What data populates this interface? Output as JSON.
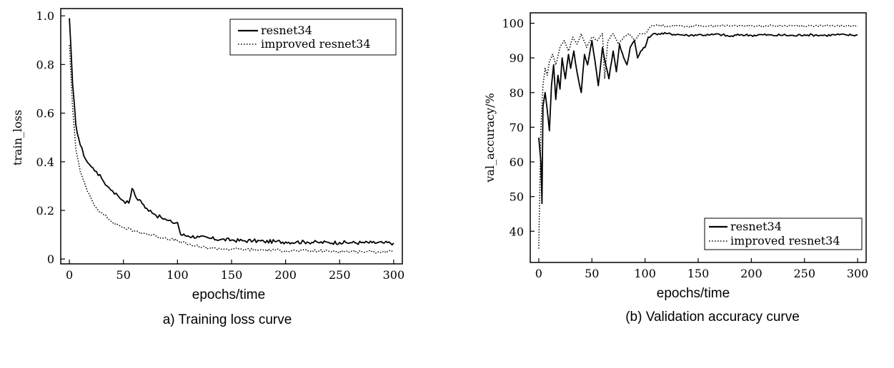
{
  "chart_data": [
    {
      "type": "line",
      "caption": "a) Training loss curve",
      "xlabel": "epochs/time",
      "ylabel": "train_loss",
      "xlim": [
        -8,
        308
      ],
      "ylim": [
        -0.02,
        1.03
      ],
      "xticks": [
        0,
        50,
        100,
        150,
        200,
        250,
        300
      ],
      "yticks": [
        0,
        0.2,
        0.4,
        0.6,
        0.8,
        1.0
      ],
      "ytick_labels": [
        "0",
        "0.2",
        "0.4",
        "0.6",
        "0.8",
        "1.0"
      ],
      "legend_position": "top-right",
      "series": [
        {
          "name": "resnet34",
          "style": "solid",
          "x": [
            0,
            3,
            6,
            10,
            15,
            20,
            25,
            30,
            35,
            40,
            45,
            50,
            55,
            58,
            62,
            66,
            70,
            75,
            80,
            85,
            90,
            95,
            100,
            103,
            110,
            120,
            130,
            140,
            150,
            160,
            170,
            180,
            190,
            200,
            210,
            220,
            230,
            240,
            250,
            260,
            270,
            280,
            290,
            300
          ],
          "y": [
            0.99,
            0.72,
            0.55,
            0.47,
            0.41,
            0.38,
            0.36,
            0.33,
            0.3,
            0.28,
            0.26,
            0.24,
            0.23,
            0.29,
            0.25,
            0.24,
            0.21,
            0.2,
            0.18,
            0.17,
            0.16,
            0.15,
            0.15,
            0.1,
            0.095,
            0.09,
            0.085,
            0.08,
            0.078,
            0.075,
            0.075,
            0.072,
            0.072,
            0.07,
            0.07,
            0.07,
            0.068,
            0.068,
            0.068,
            0.067,
            0.067,
            0.067,
            0.066,
            0.066
          ]
        },
        {
          "name": "improved resnet34",
          "style": "dotted",
          "x": [
            0,
            3,
            6,
            10,
            15,
            20,
            25,
            30,
            35,
            40,
            45,
            50,
            60,
            70,
            80,
            90,
            100,
            110,
            120,
            130,
            140,
            150,
            160,
            170,
            180,
            190,
            200,
            210,
            220,
            230,
            240,
            250,
            260,
            270,
            280,
            290,
            300
          ],
          "y": [
            0.88,
            0.62,
            0.45,
            0.36,
            0.3,
            0.25,
            0.21,
            0.19,
            0.17,
            0.15,
            0.14,
            0.13,
            0.115,
            0.105,
            0.095,
            0.085,
            0.075,
            0.06,
            0.05,
            0.045,
            0.042,
            0.04,
            0.04,
            0.038,
            0.037,
            0.036,
            0.035,
            0.034,
            0.033,
            0.033,
            0.032,
            0.032,
            0.031,
            0.031,
            0.03,
            0.03,
            0.03
          ]
        }
      ]
    },
    {
      "type": "line",
      "caption": "(b) Validation accuracy curve",
      "xlabel": "epochs/time",
      "ylabel": "val_accuracy/%",
      "xlim": [
        -8,
        308
      ],
      "ylim": [
        31,
        103
      ],
      "xticks": [
        0,
        50,
        100,
        150,
        200,
        250,
        300
      ],
      "yticks": [
        40,
        50,
        60,
        70,
        80,
        90,
        100
      ],
      "ytick_labels": [
        "40",
        "50",
        "60",
        "70",
        "80",
        "90",
        "100"
      ],
      "legend_position": "bottom-right",
      "series": [
        {
          "name": "resnet34",
          "style": "solid",
          "x": [
            0,
            2,
            3,
            4,
            6,
            8,
            10,
            12,
            14,
            16,
            18,
            20,
            22,
            25,
            28,
            30,
            33,
            36,
            40,
            43,
            46,
            50,
            53,
            56,
            60,
            63,
            66,
            70,
            73,
            76,
            80,
            83,
            86,
            90,
            93,
            96,
            100,
            103,
            106,
            110,
            120,
            130,
            140,
            150,
            160,
            170,
            180,
            190,
            200,
            210,
            220,
            230,
            240,
            250,
            260,
            270,
            280,
            290,
            300
          ],
          "y": [
            67,
            60,
            48,
            76,
            80,
            75,
            69,
            82,
            88,
            78,
            85,
            81,
            90,
            84,
            91,
            87,
            92,
            86,
            80,
            91,
            88,
            95,
            89,
            82,
            93,
            88,
            84,
            92,
            86,
            94,
            90,
            88,
            93,
            95,
            90,
            92,
            93,
            96,
            96.5,
            97,
            97,
            96.8,
            96.5,
            96.7,
            96.6,
            96.8,
            96.2,
            96.7,
            96.5,
            96.7,
            96.5,
            96.6,
            96.4,
            96.7,
            96.6,
            96.5,
            96.7,
            96.6,
            96.6
          ]
        },
        {
          "name": "improved resnet34",
          "style": "dotted",
          "x": [
            0,
            2,
            4,
            6,
            8,
            10,
            13,
            16,
            20,
            24,
            28,
            32,
            36,
            40,
            45,
            50,
            55,
            60,
            62,
            65,
            70,
            75,
            80,
            85,
            90,
            95,
            100,
            105,
            110,
            120,
            130,
            140,
            150,
            160,
            170,
            180,
            190,
            200,
            210,
            220,
            230,
            240,
            250,
            260,
            270,
            280,
            290,
            300
          ],
          "y": [
            35,
            70,
            82,
            87,
            85,
            89,
            91,
            88,
            93,
            95,
            92,
            96,
            94,
            97,
            93,
            96,
            95,
            97,
            84,
            95,
            97,
            94,
            96,
            97,
            95,
            97,
            97,
            99,
            99.5,
            99.2,
            99.3,
            99.1,
            99.3,
            99.2,
            99.3,
            99.2,
            99.3,
            99.3,
            99.2,
            99.3,
            99.2,
            99.3,
            99.2,
            99.3,
            99.2,
            99.3,
            99.2,
            99.2
          ]
        }
      ]
    }
  ]
}
